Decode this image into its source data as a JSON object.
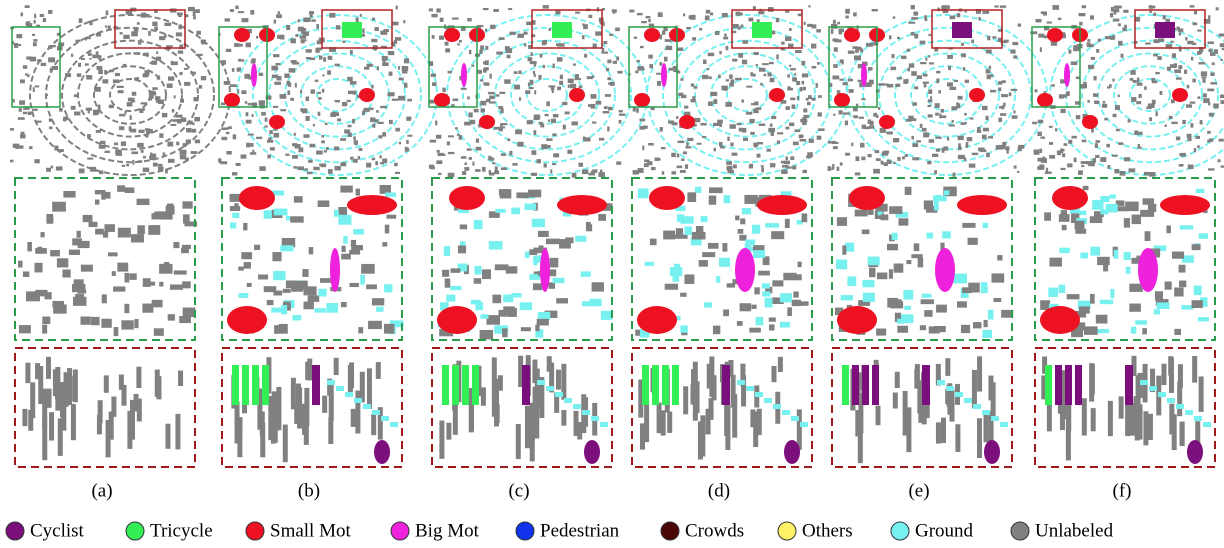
{
  "panels": [
    {
      "label": "(a)"
    },
    {
      "label": "(b)"
    },
    {
      "label": "(c)"
    },
    {
      "label": "(d)"
    },
    {
      "label": "(e)"
    },
    {
      "label": "(f)"
    }
  ],
  "legend": [
    {
      "label": "Cyclist",
      "color": "#7b0f7b"
    },
    {
      "label": "Tricycle",
      "color": "#33ee55"
    },
    {
      "label": "Small Mot",
      "color": "#ee1122"
    },
    {
      "label": "Big Mot",
      "color": "#ee22dd"
    },
    {
      "label": "Pedestrian",
      "color": "#1133ee"
    },
    {
      "label": "Crowds",
      "color": "#4a0505"
    },
    {
      "label": "Others",
      "color": "#fff066"
    },
    {
      "label": "Ground",
      "color": "#77f0f0"
    },
    {
      "label": "Unlabeled",
      "color": "#808080"
    }
  ]
}
